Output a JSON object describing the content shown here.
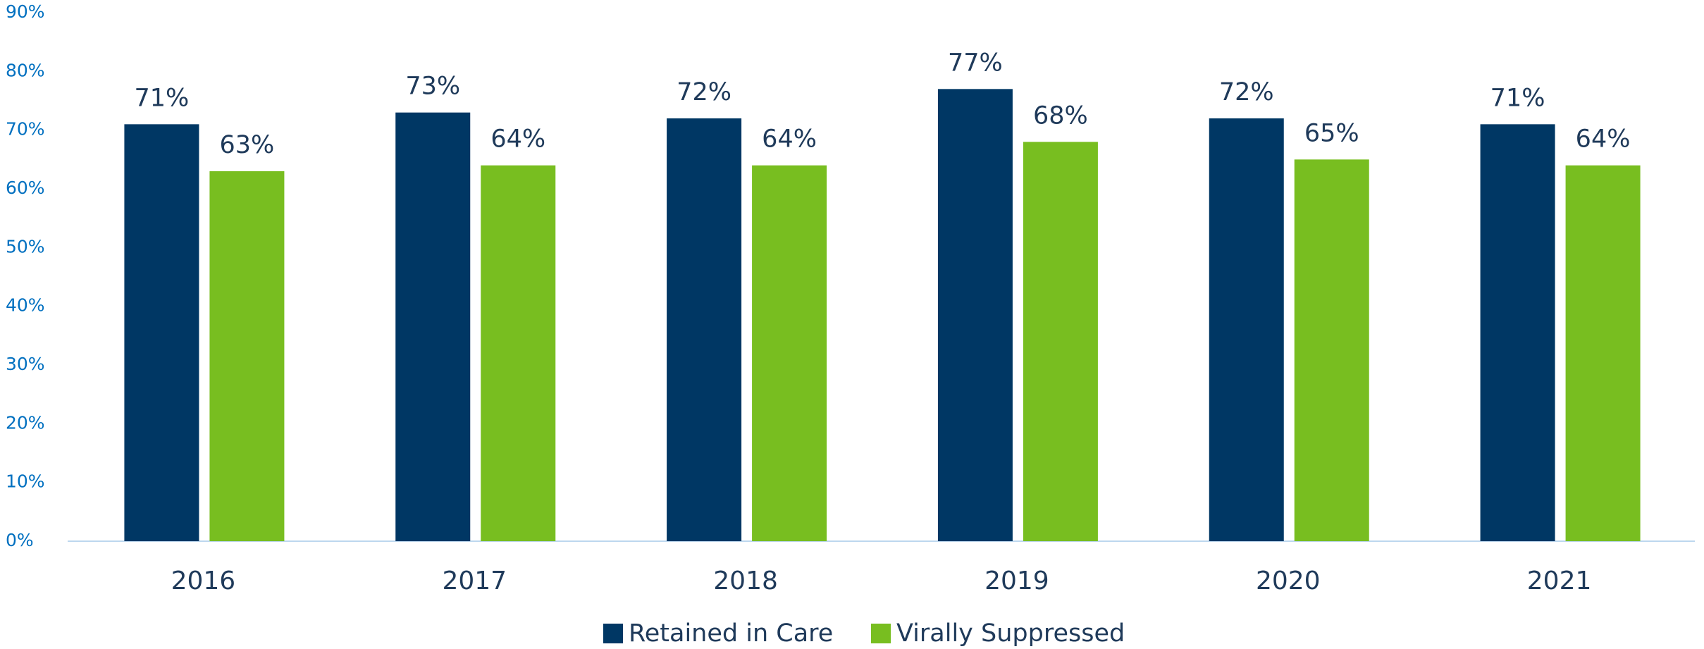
{
  "chart_data": {
    "type": "bar",
    "categories": [
      "2016",
      "2017",
      "2018",
      "2019",
      "2020",
      "2021"
    ],
    "series": [
      {
        "name": "Retained in Care",
        "color": "#003764",
        "values": [
          71,
          73,
          72,
          77,
          72,
          71
        ],
        "value_labels": [
          "71%",
          "73%",
          "72%",
          "77%",
          "72%",
          "71%"
        ]
      },
      {
        "name": "Virally Suppressed",
        "color": "#78be20",
        "values": [
          63,
          64,
          64,
          68,
          65,
          64
        ],
        "value_labels": [
          "63%",
          "64%",
          "64%",
          "68%",
          "65%",
          "64%"
        ]
      }
    ],
    "ylim": [
      0,
      90
    ],
    "yticks": [
      {
        "value": 0,
        "label": "0%"
      },
      {
        "value": 10,
        "label": "10%"
      },
      {
        "value": 20,
        "label": "20%"
      },
      {
        "value": 30,
        "label": "30%"
      },
      {
        "value": 40,
        "label": "40%"
      },
      {
        "value": 50,
        "label": "50%"
      },
      {
        "value": 60,
        "label": "60%"
      },
      {
        "value": 70,
        "label": "70%"
      },
      {
        "value": 80,
        "label": "80%"
      },
      {
        "value": 90,
        "label": "90%"
      }
    ],
    "grid": false,
    "legend": "bottom"
  }
}
